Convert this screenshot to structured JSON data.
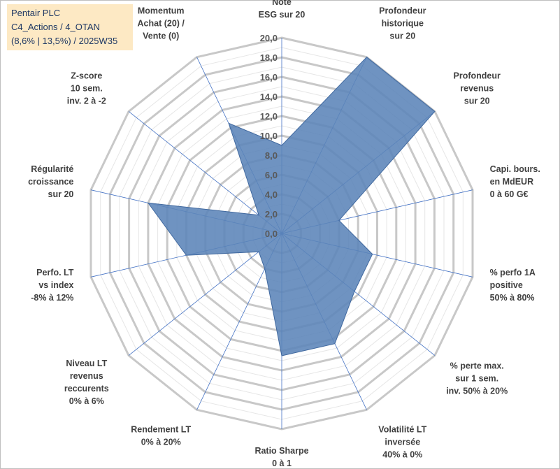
{
  "title": {
    "lines": [
      "Pentair PLC",
      "C4_Actions / 4_OTAN",
      "(8,6% | 13,5%) / 2025W35"
    ]
  },
  "chart_data": {
    "type": "radar",
    "rmin": 0,
    "rmax": 20,
    "major_step": 2,
    "grid": true,
    "tick_labels": [
      "0,0",
      "2,0",
      "4,0",
      "6,0",
      "8,0",
      "10,0",
      "12,0",
      "14,0",
      "16,0",
      "18,0",
      "20,0"
    ],
    "colors": {
      "fill": "#5b84b8",
      "edge": "#41699f",
      "spoke": "#4472c4",
      "grid": "#c8c8c8"
    },
    "categories": [
      [
        "Note",
        "ESG sur 20"
      ],
      [
        "Profondeur",
        "historique",
        "sur 20"
      ],
      [
        "Profondeur",
        "revenus",
        "sur 20"
      ],
      [
        "Capi. bours.",
        "en MdEUR",
        "0 à 60 G€"
      ],
      [
        "% perfo 1A",
        "positive",
        "50% à 80%"
      ],
      [
        "% perte max.",
        "sur 1 sem.",
        "inv. 50% à 20%"
      ],
      [
        "Volatilité LT",
        "inversée",
        "40% à 0%"
      ],
      [
        "Ratio Sharpe",
        "0 à 1"
      ],
      [
        "Rendement LT",
        "0% à 20%"
      ],
      [
        "Niveau LT",
        "revenus",
        "reccurents",
        "0% à 6%"
      ],
      [
        "Perfo. LT",
        "vs index",
        "-8% à 12%"
      ],
      [
        "Régularité",
        "croissance",
        "sur 20"
      ],
      [
        "Z-score",
        "10 sem.",
        "inv. 2 à -2"
      ],
      [
        "Momentum",
        "Achat (20) /",
        "Vente (0)"
      ]
    ],
    "series": [
      {
        "values": [
          9.0,
          20.0,
          20.0,
          6.0,
          9.5,
          9.5,
          12.5,
          12.5,
          4.0,
          3.0,
          10.0,
          14.0,
          3.0,
          12.5
        ]
      }
    ]
  }
}
